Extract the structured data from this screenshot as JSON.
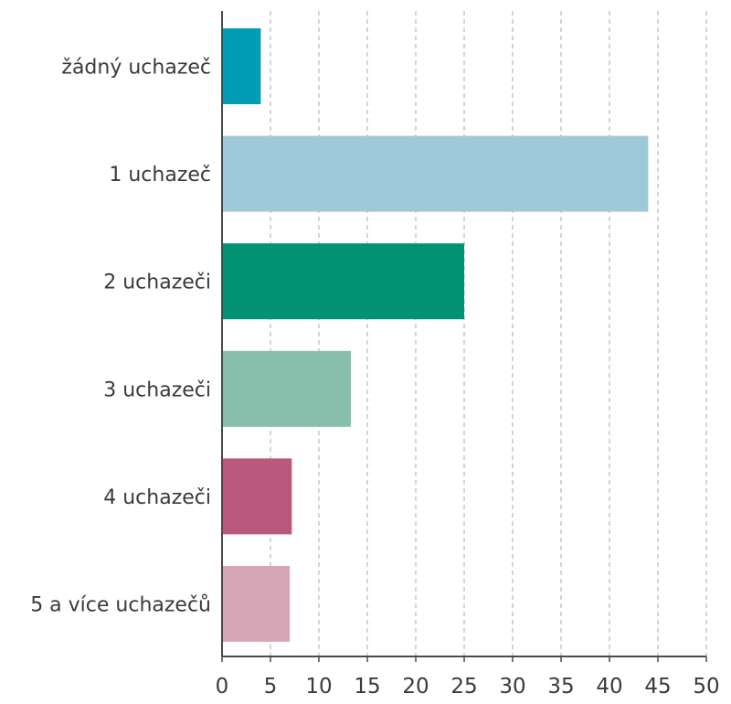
{
  "chart_data": {
    "type": "bar",
    "orientation": "horizontal",
    "categories": [
      "žádný uchazeč",
      "1 uchazeč",
      "2 uchazeči",
      "3 uchazeči",
      "4 uchazeči",
      "5 a více uchazečů"
    ],
    "values": [
      4,
      44,
      25,
      13.3,
      7.2,
      7
    ],
    "colors": [
      "#009bb5",
      "#9fc8d8",
      "#009272",
      "#86c0ad",
      "#b9597b",
      "#d6a6b6"
    ],
    "xlim": [
      0,
      50
    ],
    "xticks": [
      0,
      5,
      10,
      15,
      20,
      25,
      30,
      35,
      40,
      45,
      50
    ],
    "grid": "vertical-dashed",
    "title": "",
    "xlabel": "",
    "ylabel": ""
  }
}
